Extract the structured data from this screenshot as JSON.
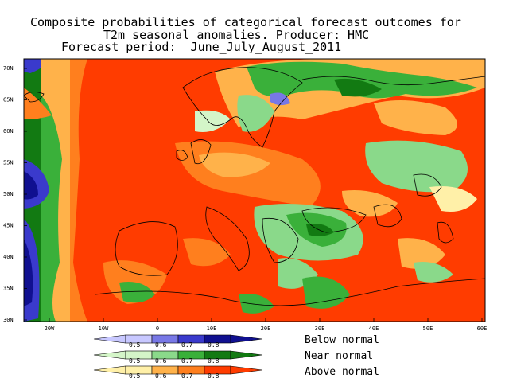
{
  "title": {
    "line1": "Composite probabilities of categorical forecast outcomes for",
    "line2": "T2m seasonal anomalies. Producer: HMC",
    "line3": "Forecast period:  June_July_August_2011"
  },
  "map": {
    "region": "Europe",
    "lat_labels": [
      "70N",
      "65N",
      "60N",
      "55N",
      "50N",
      "45N",
      "40N",
      "35N",
      "30N"
    ],
    "lon_labels": [
      "20W",
      "10W",
      "0",
      "10E",
      "20E",
      "30E",
      "40E",
      "50E",
      "60E"
    ],
    "colors": {
      "above": [
        "#fff0a8",
        "#ffb24a",
        "#ff7f1e",
        "#ff3c00"
      ],
      "near": [
        "#d4f5c8",
        "#8ad98a",
        "#3ab03a",
        "#127a12"
      ],
      "below": [
        "#c8c8ff",
        "#7878e6",
        "#3a3acc",
        "#101090"
      ]
    }
  },
  "legend": {
    "below_label": "Below normal",
    "near_label": "Near normal",
    "above_label": "Above normal",
    "ticks": [
      "0.5",
      "0.6",
      "0.7",
      "0.8"
    ]
  }
}
